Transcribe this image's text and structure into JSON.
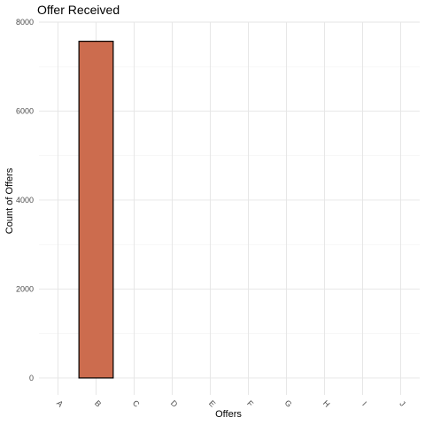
{
  "chart_data": {
    "type": "bar",
    "title": "Offer Received",
    "xlabel": "Offers",
    "ylabel": "Count of Offers",
    "categories": [
      "A",
      "B",
      "C",
      "D",
      "E",
      "F",
      "G",
      "H",
      "I",
      "J"
    ],
    "values": [
      0,
      7570,
      0,
      0,
      0,
      0,
      0,
      0,
      0,
      0
    ],
    "ylim": [
      -380,
      8000
    ],
    "yticks": [
      0,
      2000,
      4000,
      6000,
      8000
    ],
    "grid": true,
    "legend": "none",
    "bar_fill": "#cc6c4e",
    "bar_stroke": "#000000"
  }
}
